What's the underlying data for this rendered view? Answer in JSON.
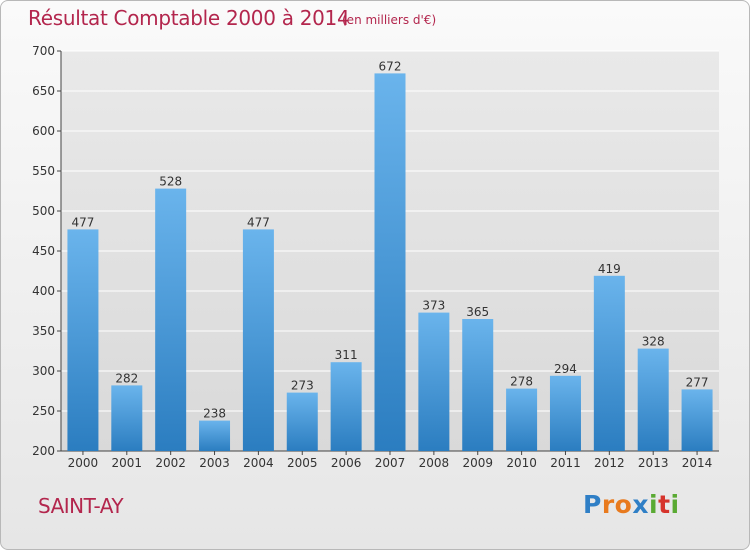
{
  "title": "Résultat Comptable 2000 à 2014",
  "subtitle": "(en milliers d'€)",
  "town": "SAINT-AY",
  "logo": {
    "letters": [
      "P",
      "r",
      "o",
      "x",
      "i",
      "t",
      "i"
    ],
    "colors": [
      "#2f7fc6",
      "#e87a1e",
      "#e87a1e",
      "#2f7fc6",
      "#5aaa33",
      "#d6342c",
      "#5aaa33"
    ]
  },
  "colors": {
    "title": "#b3264d",
    "bar_light": "#6ab4ec",
    "bar_dark": "#2b7dc0",
    "axis": "#444444",
    "grid": "#ffffff"
  },
  "chart_data": {
    "type": "bar",
    "title": "Résultat Comptable 2000 à 2014",
    "subtitle": "(en milliers d'€)",
    "categories": [
      "2000",
      "2001",
      "2002",
      "2003",
      "2004",
      "2005",
      "2006",
      "2007",
      "2008",
      "2009",
      "2010",
      "2011",
      "2012",
      "2013",
      "2014"
    ],
    "values": [
      477,
      282,
      528,
      238,
      477,
      273,
      311,
      672,
      373,
      365,
      278,
      294,
      419,
      328,
      277
    ],
    "ylim": [
      200,
      700
    ],
    "yticks": [
      200,
      250,
      300,
      350,
      400,
      450,
      500,
      550,
      600,
      650,
      700
    ],
    "grid": true,
    "data_labels": true
  }
}
